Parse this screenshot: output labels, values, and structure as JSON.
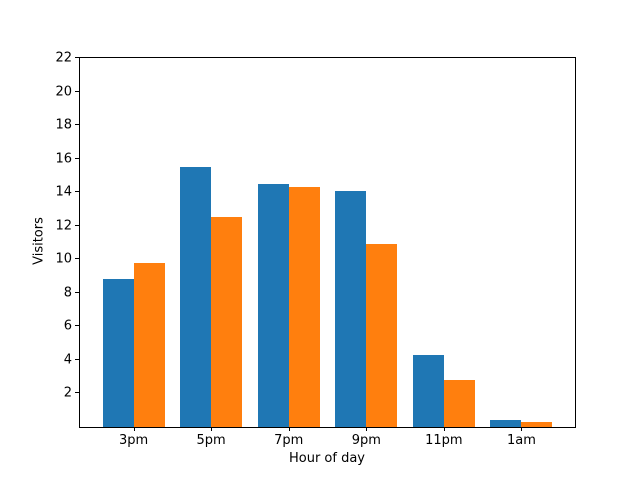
{
  "chart_data": {
    "type": "bar",
    "title": "",
    "xlabel": "Hour of day",
    "ylabel": "Visitors",
    "categories": [
      "3pm",
      "5pm",
      "7pm",
      "9pm",
      "11pm",
      "1am"
    ],
    "series": [
      {
        "label": "",
        "color": "#1f77b4",
        "values": [
          8.8,
          15.5,
          14.5,
          14.1,
          4.3,
          0.4
        ]
      },
      {
        "label": "",
        "color": "#ff7f0e",
        "values": [
          9.8,
          12.5,
          14.3,
          10.9,
          2.8,
          0.3
        ]
      }
    ],
    "ylim": [
      0,
      22
    ],
    "yticks": [
      2,
      4,
      6,
      8,
      10,
      12,
      14,
      16,
      18,
      20,
      22
    ],
    "grid": false,
    "legend": false,
    "background": "#ffffff",
    "spines": "full-box"
  }
}
